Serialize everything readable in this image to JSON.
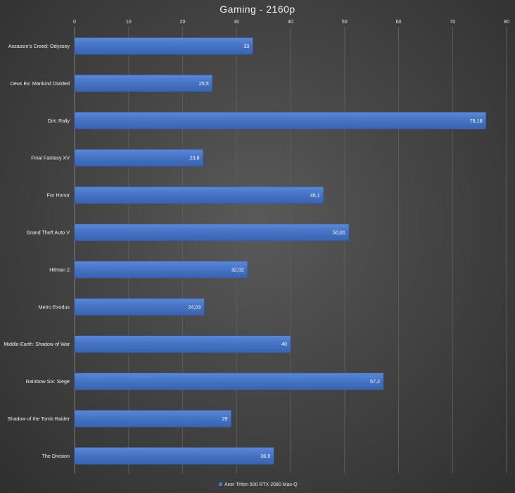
{
  "chart_data": {
    "type": "bar",
    "orientation": "horizontal",
    "title": "Gaming - 2160p",
    "categories": [
      "Assassin's Creed: Odyssey",
      "Deus Ex: Mankind Divided",
      "Dirt: Rally",
      "Final Fantasy XV",
      "For Honor",
      "Grand Theft Auto V",
      "Hitman 2",
      "Metro Exodus",
      "Middle-Earth: Shadow of War",
      "Rainbow Six: Siege",
      "Shadow of the Tomb Raider",
      "The Division"
    ],
    "series": [
      {
        "name": "Acer Triton 500 RTX 2080 Max-Q",
        "values": [
          33,
          25.5,
          76.18,
          23.8,
          46.1,
          50.81,
          32.02,
          24.03,
          40,
          57.2,
          29,
          36.9
        ],
        "labels": [
          "33",
          "25,5",
          "76,18",
          "23,8",
          "46,1",
          "50,81",
          "32,02",
          "24,03",
          "40",
          "57,2",
          "29",
          "36,9"
        ],
        "color": "#4472c4"
      }
    ],
    "xlim": [
      0,
      80
    ],
    "xticks": [
      "0",
      "10",
      "20",
      "30",
      "40",
      "50",
      "60",
      "70",
      "80"
    ],
    "xaxis_position": "top",
    "grid": true,
    "legend_position": "bottom-center"
  },
  "colors": {
    "bar": "#4472c4",
    "grid": "#5c5c5c",
    "text": "#f0f0f0"
  }
}
